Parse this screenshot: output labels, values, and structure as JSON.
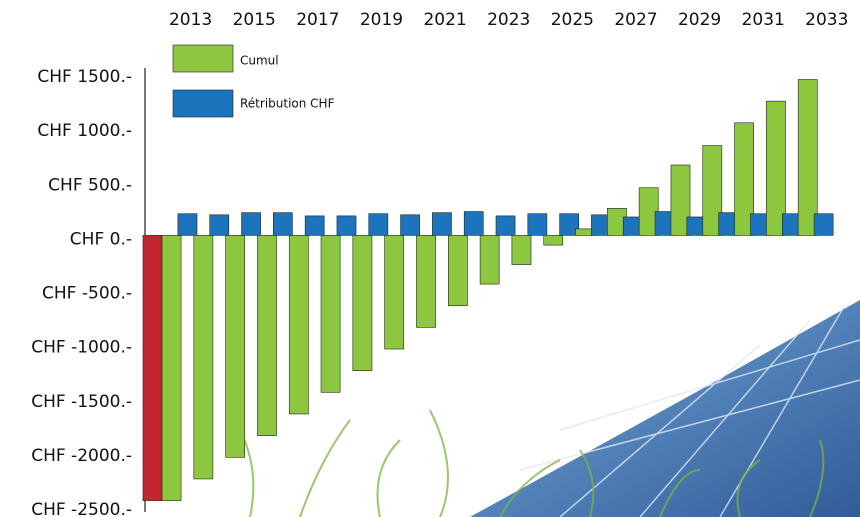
{
  "chart_data": {
    "type": "bar",
    "categories": [
      "2013",
      null,
      "2015",
      null,
      "2017",
      null,
      "2019",
      null,
      "2021",
      null,
      "2023",
      null,
      "2025",
      null,
      "2027",
      null,
      "2029",
      null,
      "2031",
      null,
      "2033"
    ],
    "series": [
      {
        "color": "#c1272d",
        "values": [
          -2450,
          null,
          null,
          null,
          null,
          null,
          null,
          null,
          null,
          null,
          null,
          null,
          null,
          null,
          null,
          null,
          null,
          null,
          null,
          null,
          null
        ]
      },
      {
        "name": "Cumul",
        "color": "#8dc63f",
        "values": [
          -2450,
          -2250,
          -2050,
          -1850,
          -1650,
          -1450,
          -1250,
          -1050,
          -850,
          -650,
          -450,
          -270,
          -90,
          60,
          250,
          440,
          650,
          830,
          1040,
          1240,
          1440
        ]
      },
      {
        "name": "Rétribution CHF",
        "color": "#1c75bc",
        "values": [
          200,
          190,
          210,
          210,
          180,
          180,
          200,
          190,
          210,
          220,
          180,
          200,
          200,
          190,
          170,
          220,
          170,
          210,
          200,
          200,
          200
        ]
      }
    ],
    "ylim": [
      -2500,
      1500
    ],
    "yticks": [
      {
        "value": 1500,
        "label": "CHF 1500.-"
      },
      {
        "value": 1000,
        "label": "CHF 1000.-"
      },
      {
        "value": 500,
        "label": "CHF 500.-"
      },
      {
        "value": 0,
        "label": "CHF 0.-"
      },
      {
        "value": -500,
        "label": "CHF -500.-"
      },
      {
        "value": -1000,
        "label": "CHF -1000.-"
      },
      {
        "value": -1500,
        "label": "CHF -1500.-"
      },
      {
        "value": -2000,
        "label": "CHF -2000.-"
      },
      {
        "value": -2500,
        "label": "CHF -2500.-"
      }
    ]
  }
}
